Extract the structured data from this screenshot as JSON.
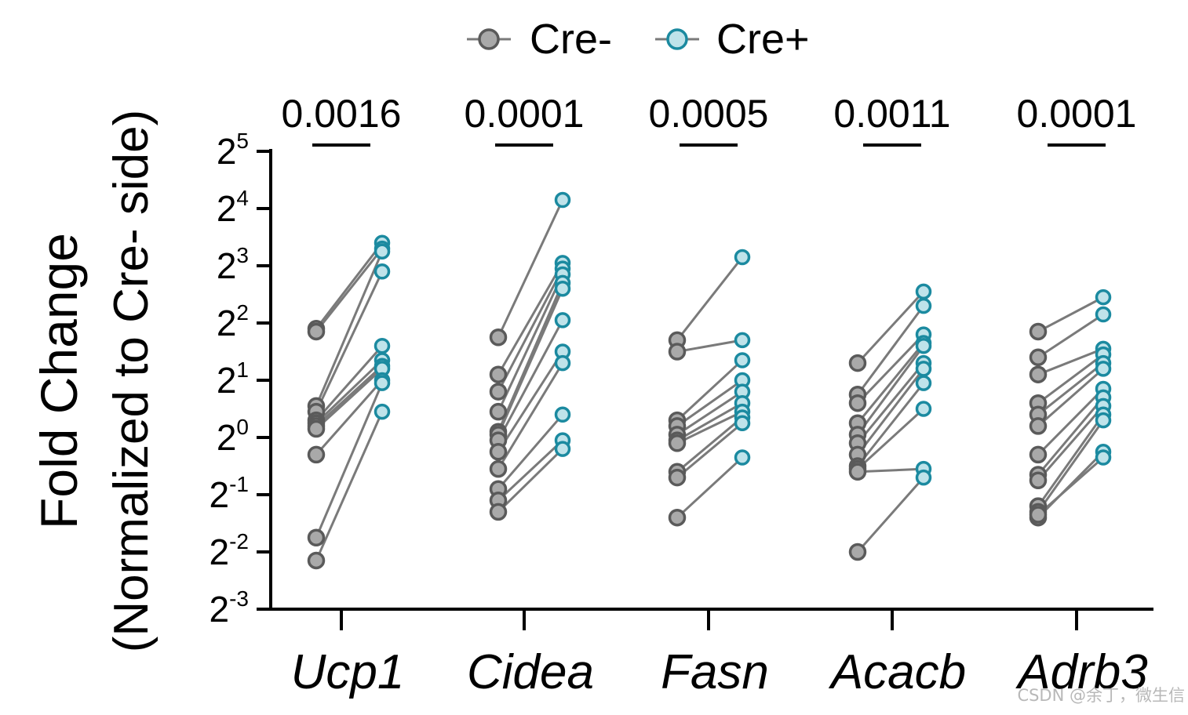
{
  "chart_data": {
    "type": "scatter",
    "subtype": "paired",
    "ylabel_line1": "Fold Change",
    "ylabel_line2": "(Normalized to Cre- side)",
    "yscale": "log2",
    "ylim": [
      -3,
      5
    ],
    "yticks": [
      {
        "exp": 5,
        "base": "2",
        "sup": "5"
      },
      {
        "exp": 4,
        "base": "2",
        "sup": "4"
      },
      {
        "exp": 3,
        "base": "2",
        "sup": "3"
      },
      {
        "exp": 2,
        "base": "2",
        "sup": "2"
      },
      {
        "exp": 1,
        "base": "2",
        "sup": "1"
      },
      {
        "exp": 0,
        "base": "2",
        "sup": "0"
      },
      {
        "exp": -1,
        "base": "2",
        "sup": "-1"
      },
      {
        "exp": -2,
        "base": "2",
        "sup": "-2"
      },
      {
        "exp": -3,
        "base": "2",
        "sup": "-3"
      }
    ],
    "legend": [
      {
        "name": "Cre-",
        "fill": "#a9a9a9",
        "stroke": "#5a5a5a"
      },
      {
        "name": "Cre+",
        "fill": "#bfe3ea",
        "stroke": "#1b8aa0"
      }
    ],
    "legend_position": "top",
    "groups": [
      {
        "gene": "Ucp1",
        "pvalue": "0.0016",
        "pairs": [
          [
            1.9,
            3.4
          ],
          [
            1.85,
            3.3
          ],
          [
            0.55,
            3.25
          ],
          [
            0.45,
            2.9
          ],
          [
            0.3,
            1.6
          ],
          [
            0.25,
            1.35
          ],
          [
            0.2,
            1.25
          ],
          [
            0.15,
            1.2
          ],
          [
            -0.3,
            1.0
          ],
          [
            -1.75,
            0.95
          ],
          [
            -2.15,
            0.45
          ]
        ]
      },
      {
        "gene": "Cidea",
        "pvalue": "0.0001",
        "pairs": [
          [
            1.75,
            4.15
          ],
          [
            1.1,
            3.05
          ],
          [
            0.8,
            2.95
          ],
          [
            0.45,
            2.85
          ],
          [
            0.1,
            2.7
          ],
          [
            0.05,
            2.6
          ],
          [
            -0.05,
            2.05
          ],
          [
            -0.25,
            1.5
          ],
          [
            -0.55,
            1.3
          ],
          [
            -0.9,
            0.4
          ],
          [
            -1.1,
            -0.05
          ],
          [
            -1.3,
            -0.2
          ]
        ]
      },
      {
        "gene": "Fasn",
        "pvalue": "0.0005",
        "pairs": [
          [
            1.7,
            3.15
          ],
          [
            1.5,
            1.7
          ],
          [
            0.3,
            1.35
          ],
          [
            0.2,
            1.0
          ],
          [
            0.05,
            0.8
          ],
          [
            -0.05,
            0.6
          ],
          [
            -0.1,
            0.45
          ],
          [
            -0.6,
            0.35
          ],
          [
            -0.7,
            0.25
          ],
          [
            -1.4,
            -0.35
          ]
        ]
      },
      {
        "gene": "Acacb",
        "pvalue": "0.0011",
        "pairs": [
          [
            1.3,
            2.55
          ],
          [
            0.75,
            2.3
          ],
          [
            0.6,
            1.8
          ],
          [
            0.25,
            1.65
          ],
          [
            0.05,
            1.6
          ],
          [
            -0.1,
            1.3
          ],
          [
            -0.3,
            1.2
          ],
          [
            -0.5,
            0.95
          ],
          [
            -0.55,
            0.5
          ],
          [
            -0.6,
            -0.55
          ],
          [
            -2.0,
            -0.7
          ]
        ]
      },
      {
        "gene": "Adrb3",
        "pvalue": "0.0001",
        "pairs": [
          [
            1.85,
            2.45
          ],
          [
            1.4,
            2.15
          ],
          [
            1.1,
            1.55
          ],
          [
            0.6,
            1.45
          ],
          [
            0.4,
            1.3
          ],
          [
            0.2,
            1.2
          ],
          [
            -0.3,
            0.85
          ],
          [
            -0.65,
            0.7
          ],
          [
            -0.75,
            0.55
          ],
          [
            -1.2,
            0.4
          ],
          [
            -1.3,
            0.3
          ],
          [
            -1.4,
            -0.25
          ],
          [
            -1.35,
            -0.35
          ]
        ]
      }
    ]
  },
  "watermark": "CSDN @余丁，微生信"
}
